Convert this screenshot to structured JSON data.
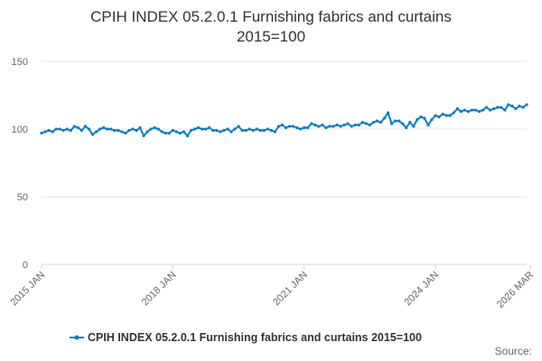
{
  "chart_data": {
    "type": "line",
    "title": [
      "CPIH INDEX 05.2.0.1 Furnishing fabrics and curtains",
      "2015=100"
    ],
    "xlabel": "",
    "ylabel": "",
    "ylim": [
      0,
      150
    ],
    "y_ticks": [
      0,
      50,
      100,
      150
    ],
    "x_ticks": [
      {
        "label": "2015 JAN",
        "index": 0
      },
      {
        "label": "2018 JAN",
        "index": 36
      },
      {
        "label": "2021 JAN",
        "index": 72
      },
      {
        "label": "2024 JAN",
        "index": 108
      },
      {
        "label": "2026 MAR",
        "index": 134
      }
    ],
    "grid": "horizontal",
    "legend_position": "bottom",
    "colors": {
      "series": "#0f7dbf",
      "grid": "#e3e3e3",
      "axis": "#ccd6eb"
    },
    "series": [
      {
        "name": "CPIH INDEX 05.2.0.1 Furnishing fabrics and curtains 2015=100",
        "start": "2015 JAN",
        "values": [
          97,
          98,
          99,
          98,
          100,
          100,
          99,
          100,
          99,
          102,
          101,
          99,
          102,
          100,
          96,
          98,
          100,
          101,
          100,
          100,
          99,
          99,
          98,
          97,
          99,
          100,
          99,
          101,
          95,
          98,
          100,
          101,
          100,
          98,
          97,
          97,
          99,
          98,
          97,
          98,
          95,
          99,
          100,
          101,
          100,
          100,
          101,
          99,
          99,
          98,
          99,
          100,
          98,
          100,
          102,
          99,
          99,
          100,
          99,
          100,
          99,
          99,
          100,
          99,
          98,
          102,
          103,
          101,
          102,
          102,
          101,
          100,
          101,
          101,
          104,
          103,
          102,
          103,
          101,
          102,
          102,
          103,
          102,
          103,
          104,
          102,
          103,
          103,
          105,
          104,
          103,
          105,
          106,
          105,
          108,
          112,
          104,
          106,
          106,
          104,
          101,
          105,
          102,
          107,
          109,
          108,
          103,
          107,
          110,
          109,
          111,
          110,
          110,
          112,
          115,
          113,
          114,
          113,
          114,
          114,
          113,
          114,
          116,
          114,
          115,
          116,
          116,
          114,
          118,
          117,
          115,
          117,
          116,
          118
        ]
      }
    ]
  },
  "legend": {
    "label": "CPIH INDEX 05.2.0.1 Furnishing fabrics and curtains 2015=100"
  },
  "footer": {
    "source": "Source:"
  }
}
